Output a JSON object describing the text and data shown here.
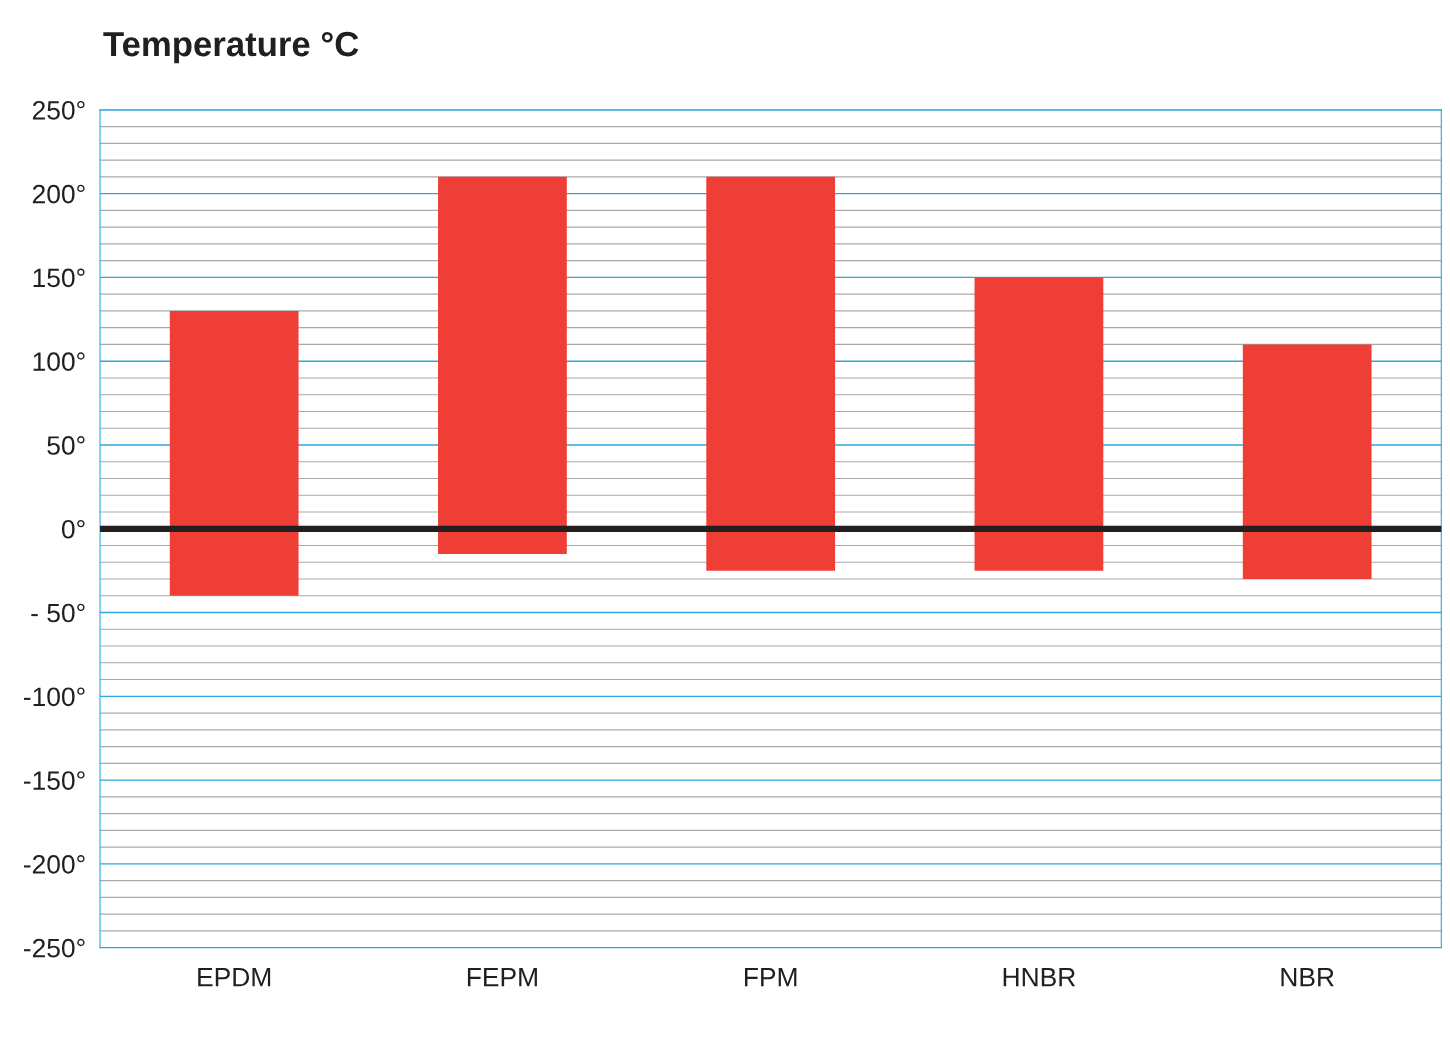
{
  "chart_data": {
    "type": "bar",
    "title": "Temperature °C",
    "categories": [
      "EPDM",
      "FEPM",
      "FPM",
      "HNBR",
      "NBR"
    ],
    "base": [
      -40,
      -15,
      -25,
      -25,
      -30
    ],
    "values": [
      170,
      225,
      235,
      175,
      140
    ],
    "color": "#ee3e36",
    "ylim": [
      -250,
      250
    ],
    "yticks": [
      {
        "value": 250,
        "label": "250°"
      },
      {
        "value": 200,
        "label": "200°"
      },
      {
        "value": 150,
        "label": "150°"
      },
      {
        "value": 100,
        "label": "100°"
      },
      {
        "value": 50,
        "label": "50°"
      },
      {
        "value": 0,
        "label": "0°"
      },
      {
        "value": -50,
        "label": "- 50°"
      },
      {
        "value": -100,
        "label": "-100°"
      },
      {
        "value": -150,
        "label": "-150°"
      },
      {
        "value": -200,
        "label": "-200°"
      },
      {
        "value": -250,
        "label": "-250°"
      }
    ],
    "grid": "y",
    "ref_lines": [
      {
        "axis": "y",
        "value": 0,
        "label": null,
        "color": "#231f20"
      }
    ]
  }
}
